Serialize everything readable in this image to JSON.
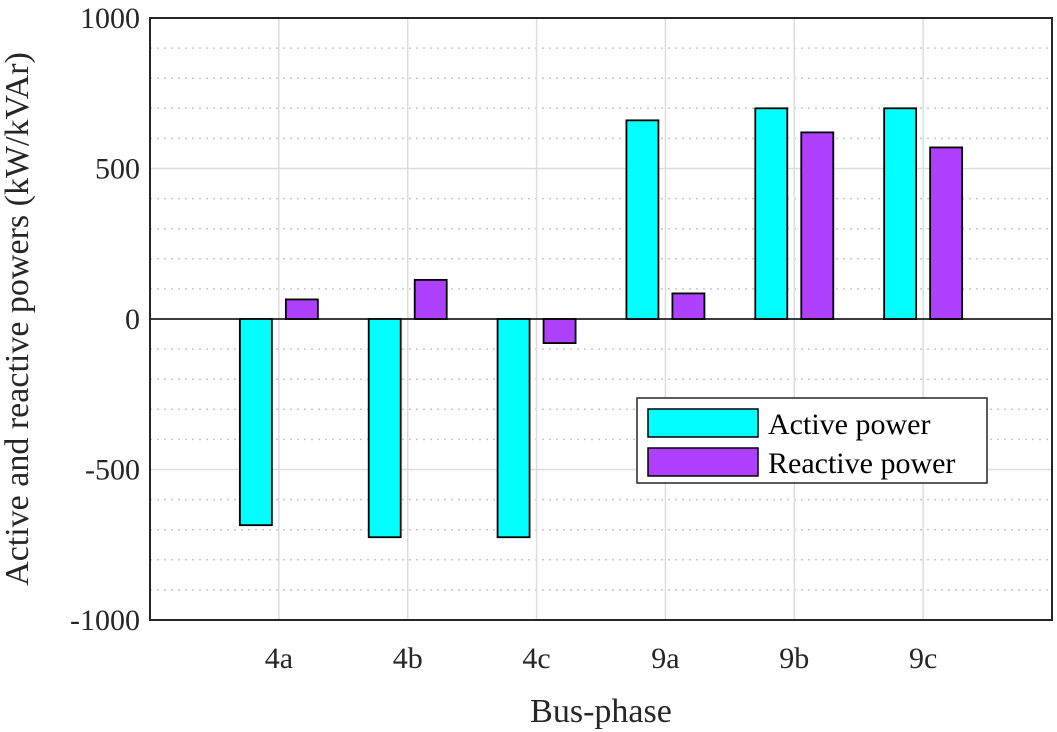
{
  "chart_data": {
    "type": "bar",
    "title": "",
    "xlabel": "Bus-phase",
    "ylabel": "Active and reactive powers (kW/kVAr)",
    "categories": [
      "4a",
      "4b",
      "4c",
      "9a",
      "9b",
      "9c"
    ],
    "series": [
      {
        "name": "Active power",
        "color": "#00ffff",
        "values": [
          -685,
          -725,
          -725,
          660,
          700,
          700
        ]
      },
      {
        "name": "Reactive power",
        "color": "#b040ff",
        "values": [
          65,
          130,
          -80,
          85,
          620,
          570
        ]
      }
    ],
    "ylim": [
      -1000,
      1000
    ],
    "yticks": [
      -1000,
      -500,
      0,
      500,
      1000
    ],
    "ytick_labels": [
      "-1000",
      "-500",
      "0",
      "500",
      "1000"
    ],
    "grid": true,
    "minor_grid": true,
    "legend": "lower-right"
  }
}
